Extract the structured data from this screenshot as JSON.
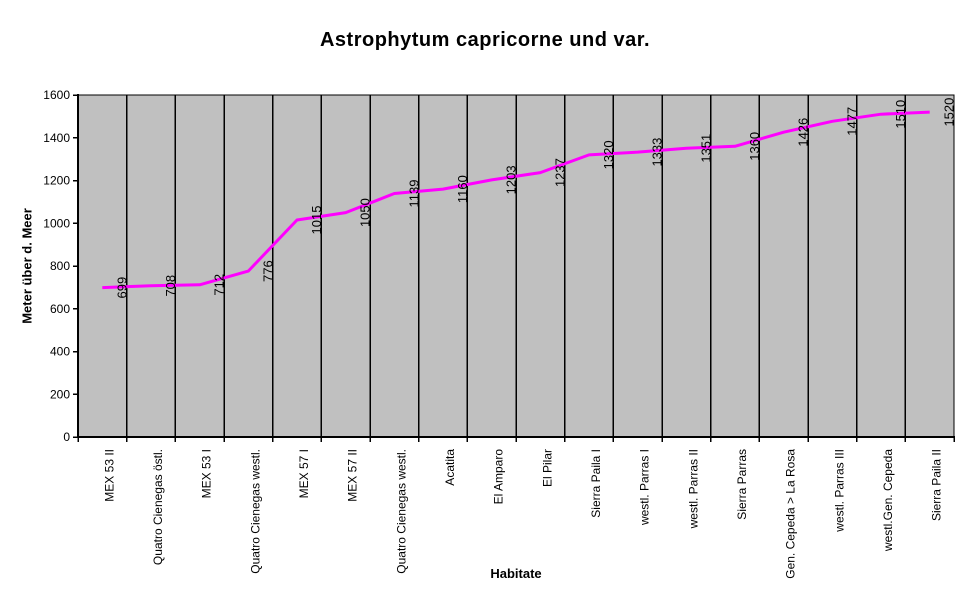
{
  "chart_data": {
    "type": "line",
    "title": "Astrophytum capricorne und var.",
    "xlabel": "Habitate",
    "ylabel": "Meter über d. Meer",
    "categories": [
      "MEX 53 II",
      "Quatro Cienegas östl.",
      "MEX 53 I",
      "Quatro Cienegas westl.",
      "MEX 57 I",
      "MEX 57 II",
      "Quatro Cienegas westl.",
      "Acatita",
      "El Amparo",
      "El Pilar",
      "Sierra Paila I",
      "westl. Parras I",
      "westl. Parras II",
      "Sierra Parras",
      "Gen. Cepeda > La Rosa",
      "westl. Parras III",
      "westl.Gen. Cepeda",
      "Sierra Paila II"
    ],
    "values": [
      699,
      708,
      712,
      776,
      1015,
      1050,
      1139,
      1160,
      1203,
      1237,
      1320,
      1333,
      1351,
      1360,
      1426,
      1477,
      1510,
      1520
    ],
    "ylim": [
      0,
      1600
    ],
    "ytick_step": 200,
    "yticks": [
      0,
      200,
      400,
      600,
      800,
      1000,
      1200,
      1400,
      1600
    ],
    "grid": "vertical category separators only, no horizontal gridlines",
    "legend": "none",
    "data_labels": true,
    "label_rotation_deg": 90,
    "colors": {
      "line": "#FF00FF",
      "plot_background": "#C0C0C0",
      "axis": "#000000",
      "text": "#000000",
      "background": "#FFFFFF"
    }
  }
}
